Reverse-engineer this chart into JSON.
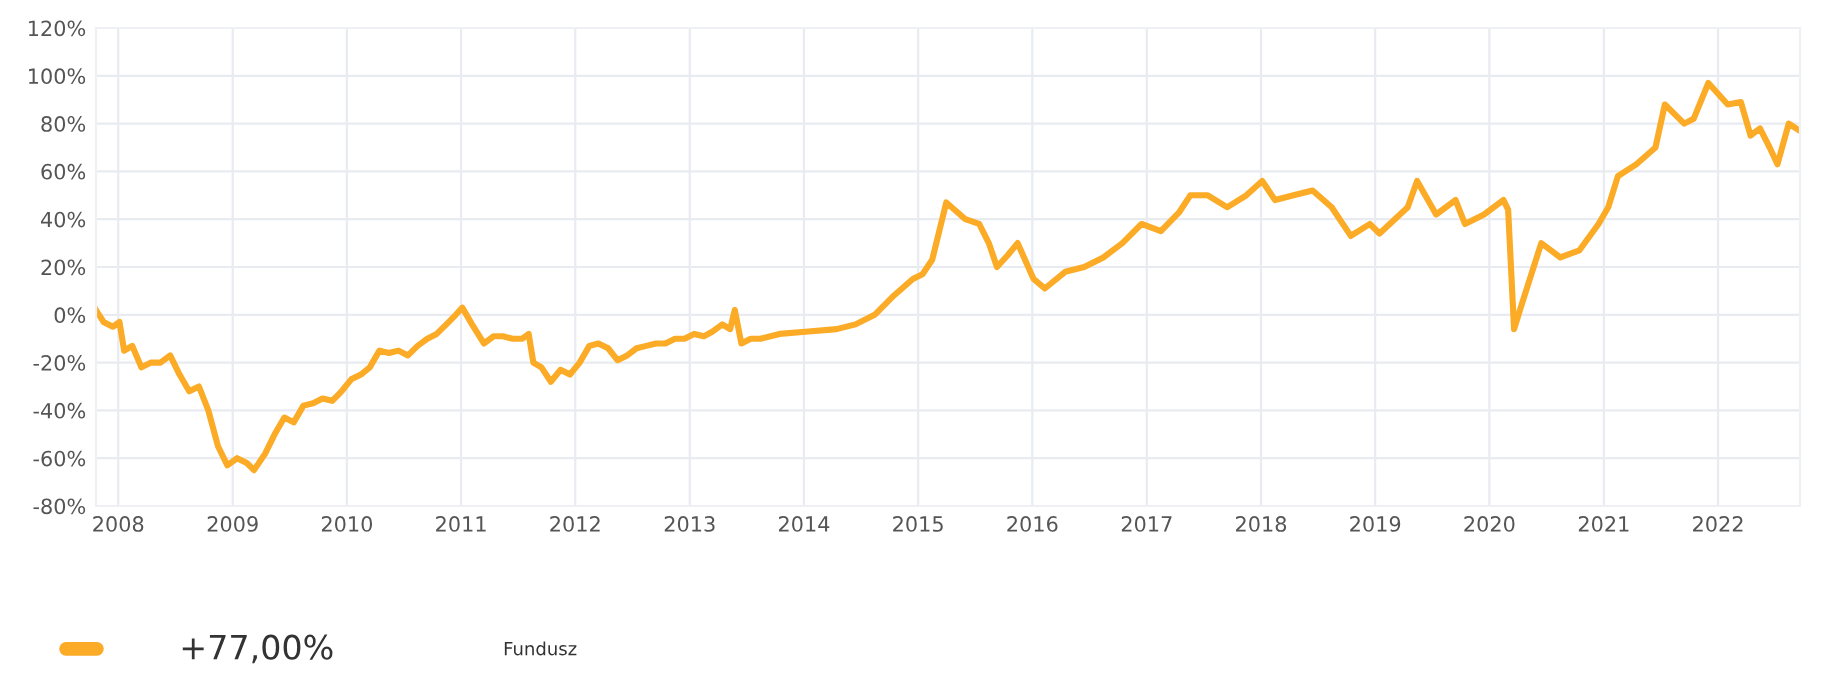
{
  "chart_data": {
    "type": "line",
    "x": [
      "2007-10-22",
      "2007-11-15",
      "2007-12-15",
      "2008-01-05",
      "2008-01-20",
      "2008-02-15",
      "2008-03-15",
      "2008-04-15",
      "2008-05-15",
      "2008-06-15",
      "2008-07-15",
      "2008-08-15",
      "2008-09-15",
      "2008-10-15",
      "2008-11-15",
      "2008-12-15",
      "2009-01-15",
      "2009-02-15",
      "2009-03-10",
      "2009-04-15",
      "2009-05-15",
      "2009-06-15",
      "2009-07-15",
      "2009-08-15",
      "2009-09-15",
      "2009-10-15",
      "2009-11-15",
      "2009-12-15",
      "2010-01-15",
      "2010-02-15",
      "2010-03-15",
      "2010-04-15",
      "2010-05-15",
      "2010-06-15",
      "2010-07-15",
      "2010-08-15",
      "2010-09-15",
      "2010-10-15",
      "2010-11-15",
      "2010-12-15",
      "2011-01-05",
      "2011-02-05",
      "2011-03-15",
      "2011-04-15",
      "2011-05-15",
      "2011-06-15",
      "2011-07-15",
      "2011-08-05",
      "2011-08-20",
      "2011-09-15",
      "2011-10-15",
      "2011-11-15",
      "2011-12-15",
      "2012-01-15",
      "2012-02-15",
      "2012-03-15",
      "2012-04-15",
      "2012-05-15",
      "2012-06-15",
      "2012-07-15",
      "2012-08-15",
      "2012-09-15",
      "2012-10-15",
      "2012-11-15",
      "2012-12-15",
      "2013-01-15",
      "2013-02-15",
      "2013-03-15",
      "2013-04-15",
      "2013-05-10",
      "2013-05-25",
      "2013-06-15",
      "2013-07-15",
      "2013-08-15",
      "2013-10-15",
      "2014-01-15",
      "2014-04-15",
      "2014-06-15",
      "2014-08-15",
      "2014-10-15",
      "2014-12-15",
      "2015-01-15",
      "2015-02-15",
      "2015-04-01",
      "2015-06-01",
      "2015-07-15",
      "2015-08-15",
      "2015-09-10",
      "2015-10-15",
      "2015-11-15",
      "2016-01-05",
      "2016-02-10",
      "2016-04-15",
      "2016-06-15",
      "2016-08-15",
      "2016-10-15",
      "2016-12-15",
      "2017-02-15",
      "2017-04-15",
      "2017-05-20",
      "2017-07-15",
      "2017-09-15",
      "2017-11-15",
      "2018-01-05",
      "2018-02-15",
      "2018-04-15",
      "2018-06-15",
      "2018-08-15",
      "2018-10-15",
      "2018-12-15",
      "2019-01-15",
      "2019-04-15",
      "2019-05-15",
      "2019-07-15",
      "2019-09-15",
      "2019-10-15",
      "2019-12-15",
      "2020-02-15",
      "2020-03-01",
      "2020-03-20",
      "2020-04-15",
      "2020-06-15",
      "2020-08-15",
      "2020-10-15",
      "2020-12-15",
      "2021-01-15",
      "2021-02-15",
      "2021-04-15",
      "2021-06-15",
      "2021-07-15",
      "2021-09-15",
      "2021-10-15",
      "2021-12-01",
      "2022-02-01",
      "2022-03-15",
      "2022-04-15",
      "2022-05-15",
      "2022-06-15",
      "2022-07-10",
      "2022-08-15",
      "2022-09-20"
    ],
    "series": [
      {
        "name": "Fundusz",
        "color": "#fbab26",
        "values": [
          2,
          -3,
          -5,
          -3,
          -15,
          -13,
          -22,
          -20,
          -20,
          -17,
          -25,
          -32,
          -30,
          -40,
          -55,
          -63,
          -60,
          -62,
          -65,
          -58,
          -50,
          -43,
          -45,
          -38,
          -37,
          -35,
          -36,
          -32,
          -27,
          -25,
          -22,
          -15,
          -16,
          -15,
          -17,
          -13,
          -10,
          -8,
          -4,
          0,
          3,
          -4,
          -12,
          -9,
          -9,
          -10,
          -10,
          -8,
          -20,
          -22,
          -28,
          -23,
          -25,
          -20,
          -13,
          -12,
          -14,
          -19,
          -17,
          -14,
          -13,
          -12,
          -12,
          -10,
          -10,
          -8,
          -9,
          -7,
          -4,
          -6,
          2,
          -12,
          -10,
          -10,
          -8,
          -7,
          -6,
          -4,
          0,
          8,
          15,
          17,
          23,
          47,
          40,
          38,
          30,
          20,
          25,
          30,
          15,
          11,
          18,
          20,
          24,
          30,
          38,
          35,
          43,
          50,
          50,
          45,
          50,
          56,
          48,
          50,
          52,
          45,
          33,
          38,
          34,
          45,
          56,
          42,
          48,
          38,
          42,
          48,
          44,
          -6,
          5,
          30,
          24,
          27,
          38,
          45,
          58,
          63,
          70,
          88,
          80,
          82,
          97,
          88,
          89,
          75,
          78,
          70,
          63,
          80,
          77
        ]
      }
    ],
    "xlim": [
      "2007-10-22",
      "2022-09-20"
    ],
    "xticks": [
      {
        "value": "2008-01-01",
        "label": "2008"
      },
      {
        "value": "2009-01-01",
        "label": "2009"
      },
      {
        "value": "2010-01-01",
        "label": "2010"
      },
      {
        "value": "2011-01-01",
        "label": "2011"
      },
      {
        "value": "2012-01-01",
        "label": "2012"
      },
      {
        "value": "2013-01-01",
        "label": "2013"
      },
      {
        "value": "2014-01-01",
        "label": "2014"
      },
      {
        "value": "2015-01-01",
        "label": "2015"
      },
      {
        "value": "2016-01-01",
        "label": "2016"
      },
      {
        "value": "2017-01-01",
        "label": "2017"
      },
      {
        "value": "2018-01-01",
        "label": "2018"
      },
      {
        "value": "2019-01-01",
        "label": "2019"
      },
      {
        "value": "2020-01-01",
        "label": "2020"
      },
      {
        "value": "2021-01-01",
        "label": "2021"
      },
      {
        "value": "2022-01-01",
        "label": "2022"
      }
    ],
    "ylim": [
      -80,
      120
    ],
    "yticks": [
      {
        "value": -80,
        "label": "-80%"
      },
      {
        "value": -60,
        "label": "-60%"
      },
      {
        "value": -40,
        "label": "-40%"
      },
      {
        "value": -20,
        "label": "-20%"
      },
      {
        "value": 0,
        "label": "0%"
      },
      {
        "value": 20,
        "label": "20%"
      },
      {
        "value": 40,
        "label": "40%"
      },
      {
        "value": 60,
        "label": "60%"
      },
      {
        "value": 80,
        "label": "80%"
      },
      {
        "value": 100,
        "label": "100%"
      },
      {
        "value": 120,
        "label": "120%"
      }
    ],
    "grid": true,
    "legend": "bottom",
    "annotations": [
      "+77,00%"
    ]
  }
}
